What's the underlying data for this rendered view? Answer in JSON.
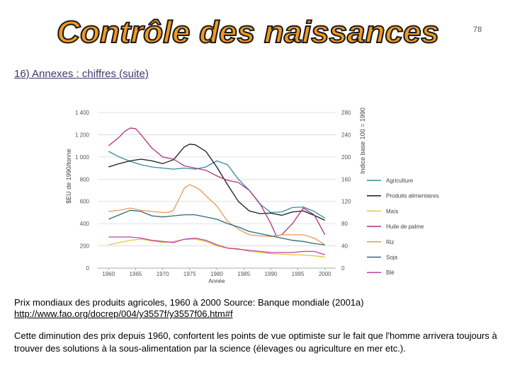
{
  "slide": {
    "title": "Contrôle des naissances",
    "page_number": "78",
    "subtitle": "16) Annexes : chiffres (suite)",
    "caption": "Prix mondiaux des produits agricoles, 1960 à 2000 Source: Banque mondiale (2001a)",
    "caption_link": "http://www.fao.org/docrep/004/y3557f/y3557f06.htm#f",
    "body": "Cette diminution des prix depuis 1960, confortent les points de vue optimiste sur le fait que l'homme arrivera toujours à trouver des solutions à la sous-alimentation par la science (élevages ou agriculture en mer etc.)."
  },
  "colors": {
    "title_fill": "#f29a1f",
    "title_stroke": "#1a1a1a"
  },
  "chart_data": {
    "type": "line",
    "title": "",
    "xlabel": "Année",
    "ylabel": "$EU de 1990/tonne",
    "y2label": "Indice base 100 = 1990",
    "xlim": [
      1958,
      2002
    ],
    "ylim": [
      0,
      1400
    ],
    "y2lim": [
      0,
      280
    ],
    "x_ticks": [
      "1960",
      "1965",
      "1970",
      "1975",
      "1980",
      "1985",
      "1990",
      "1995",
      "2000"
    ],
    "y_ticks": [
      "0",
      "200",
      "400",
      "600",
      "800",
      "1 000",
      "1 200",
      "1 400"
    ],
    "y2_ticks": [
      "0",
      "40",
      "80",
      "120",
      "160",
      "200",
      "240",
      "280"
    ],
    "grid": true,
    "legend_position": "right",
    "series": [
      {
        "name": "Agriculture",
        "axis": "right",
        "color": "#2e8fa0",
        "x": [
          1960,
          1962,
          1964,
          1966,
          1968,
          1970,
          1972,
          1974,
          1976,
          1978,
          1980,
          1982,
          1984,
          1986,
          1988,
          1990,
          1992,
          1994,
          1996,
          1998,
          2000
        ],
        "y": [
          210,
          200,
          192,
          186,
          182,
          180,
          178,
          180,
          178,
          182,
          193,
          186,
          160,
          140,
          115,
          100,
          101,
          109,
          110,
          102,
          90
        ]
      },
      {
        "name": "Produits alimentaires",
        "axis": "right",
        "color": "#1a1a1a",
        "x": [
          1960,
          1962,
          1964,
          1966,
          1968,
          1970,
          1972,
          1974,
          1975,
          1976,
          1978,
          1980,
          1982,
          1984,
          1986,
          1988,
          1990,
          1992,
          1994,
          1996,
          1998,
          2000
        ],
        "y": [
          182,
          188,
          193,
          196,
          193,
          188,
          195,
          218,
          223,
          222,
          210,
          182,
          150,
          120,
          103,
          98,
          99,
          95,
          101,
          103,
          95,
          86
        ]
      },
      {
        "name": "Maïs",
        "axis": "left",
        "color": "#e2c93a",
        "x": [
          1960,
          1962,
          1964,
          1966,
          1968,
          1970,
          1972,
          1974,
          1976,
          1978,
          1980,
          1982,
          1984,
          1986,
          1988,
          1990,
          1992,
          1994,
          1996,
          1998,
          2000
        ],
        "y": [
          210,
          230,
          250,
          260,
          245,
          230,
          240,
          258,
          260,
          240,
          200,
          180,
          175,
          150,
          140,
          130,
          125,
          120,
          118,
          110,
          100
        ]
      },
      {
        "name": "Huile de palme",
        "axis": "left",
        "color": "#b0327a",
        "x": [
          1960,
          1962,
          1963,
          1964,
          1965,
          1966,
          1968,
          1970,
          1972,
          1974,
          1976,
          1978,
          1980,
          1982,
          1984,
          1986,
          1988,
          1990,
          1991,
          1992,
          1994,
          1996,
          1998,
          2000
        ],
        "y": [
          1100,
          1180,
          1230,
          1260,
          1255,
          1200,
          1080,
          1000,
          980,
          920,
          900,
          880,
          830,
          790,
          770,
          700,
          580,
          400,
          290,
          300,
          400,
          540,
          480,
          300
        ]
      },
      {
        "name": "Riz",
        "axis": "left",
        "color": "#ec9a52",
        "x": [
          1960,
          1962,
          1964,
          1966,
          1968,
          1970,
          1971,
          1972,
          1973,
          1974,
          1975,
          1976,
          1977,
          1978,
          1980,
          1982,
          1984,
          1986,
          1988,
          1990,
          1992,
          1994,
          1996,
          1998,
          2000
        ],
        "y": [
          510,
          520,
          540,
          520,
          510,
          500,
          500,
          520,
          620,
          720,
          750,
          730,
          700,
          650,
          560,
          420,
          350,
          300,
          290,
          285,
          300,
          300,
          300,
          270,
          210
        ]
      },
      {
        "name": "Soja",
        "axis": "left",
        "color": "#2a6b80",
        "x": [
          1960,
          1962,
          1964,
          1966,
          1968,
          1970,
          1972,
          1974,
          1976,
          1978,
          1980,
          1982,
          1984,
          1986,
          1988,
          1990,
          1992,
          1994,
          1996,
          1998,
          2000
        ],
        "y": [
          440,
          480,
          520,
          510,
          470,
          460,
          470,
          480,
          480,
          460,
          440,
          400,
          370,
          330,
          310,
          290,
          270,
          250,
          240,
          220,
          210
        ]
      },
      {
        "name": "Blé",
        "axis": "left",
        "color": "#c23fa0",
        "x": [
          1960,
          1962,
          1964,
          1966,
          1968,
          1970,
          1972,
          1974,
          1976,
          1978,
          1980,
          1982,
          1984,
          1986,
          1988,
          1990,
          1992,
          1994,
          1996,
          1998,
          2000
        ],
        "y": [
          280,
          280,
          280,
          270,
          250,
          240,
          230,
          260,
          270,
          250,
          210,
          180,
          170,
          160,
          150,
          140,
          140,
          140,
          150,
          150,
          120
        ]
      }
    ]
  }
}
